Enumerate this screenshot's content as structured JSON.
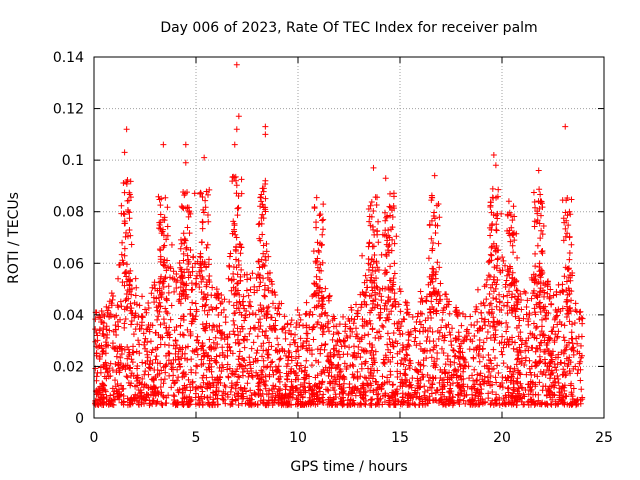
{
  "chart_data": {
    "type": "scatter",
    "title": "Day 006 of 2023, Rate Of TEC Index for receiver palm",
    "xlabel": "GPS time / hours",
    "ylabel": "ROTI / TECUs",
    "xlim": [
      0,
      25
    ],
    "ylim": [
      0,
      0.14
    ],
    "x_ticks": [
      0,
      5,
      10,
      15,
      20,
      25
    ],
    "x_tick_labels": [
      "0",
      "5",
      "10",
      "15",
      "20",
      "25"
    ],
    "y_ticks": [
      0,
      0.02,
      0.04,
      0.06,
      0.08,
      0.1,
      0.12,
      0.14
    ],
    "y_tick_labels": [
      "0",
      "0.02",
      "0.04",
      "0.06",
      "0.08",
      "0.1",
      "0.12",
      "0.14"
    ],
    "grid": true,
    "marker": "+",
    "color": "#ff0000",
    "series": [
      {
        "name": "ROTI",
        "note": "dense scatter of ~thousands of samples every few minutes from 0 to 24 h; bulk 0.005-0.05 TECU, frequent excursions to 0.06-0.09",
        "highlights": [
          {
            "x": 1.6,
            "y": 0.112
          },
          {
            "x": 1.5,
            "y": 0.103
          },
          {
            "x": 3.4,
            "y": 0.106
          },
          {
            "x": 4.5,
            "y": 0.106
          },
          {
            "x": 4.5,
            "y": 0.099
          },
          {
            "x": 5.4,
            "y": 0.101
          },
          {
            "x": 6.9,
            "y": 0.106
          },
          {
            "x": 7.0,
            "y": 0.112
          },
          {
            "x": 7.1,
            "y": 0.117
          },
          {
            "x": 7.0,
            "y": 0.137
          },
          {
            "x": 8.4,
            "y": 0.113
          },
          {
            "x": 8.4,
            "y": 0.11
          },
          {
            "x": 8.4,
            "y": 0.092
          },
          {
            "x": 13.7,
            "y": 0.097
          },
          {
            "x": 14.3,
            "y": 0.093
          },
          {
            "x": 16.7,
            "y": 0.094
          },
          {
            "x": 19.6,
            "y": 0.102
          },
          {
            "x": 19.7,
            "y": 0.098
          },
          {
            "x": 21.8,
            "y": 0.096
          },
          {
            "x": 23.1,
            "y": 0.113
          }
        ]
      }
    ]
  }
}
